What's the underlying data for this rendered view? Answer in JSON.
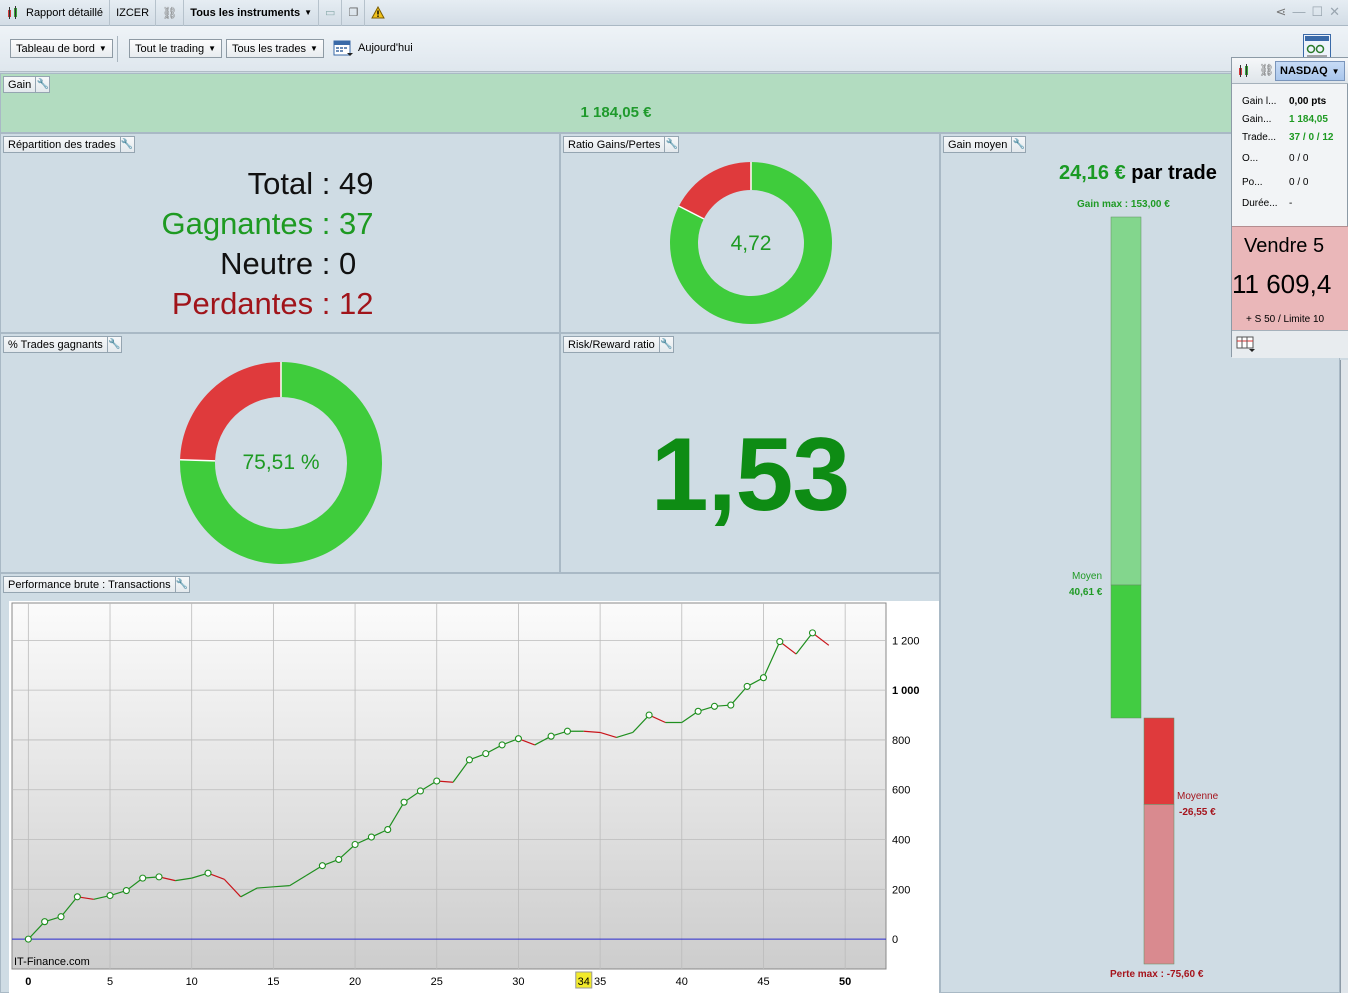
{
  "titlebar": {
    "report_label": "Rapport détaillé",
    "account": "IZCER",
    "instruments": "Tous les instruments"
  },
  "toolbar": {
    "dashboard": "Tableau de bord",
    "trading": "Tout le trading",
    "trades": "Tous les trades",
    "period": "Aujourd'hui"
  },
  "gain": {
    "title": "Gain",
    "value": "1 184,05 €"
  },
  "repartition": {
    "title": "Répartition des trades",
    "rows": [
      {
        "label": "Total :",
        "value": "49",
        "color": "#111111"
      },
      {
        "label": "Gagnantes :",
        "value": "37",
        "color": "#1e9a22"
      },
      {
        "label": "Neutre :",
        "value": "0",
        "color": "#111111"
      },
      {
        "label": "Perdantes :",
        "value": "12",
        "color": "#a0141a"
      }
    ]
  },
  "ratio": {
    "title": "Ratio Gains/Pertes",
    "value": "4,72",
    "green_fraction": 0.8252,
    "colors": {
      "green": "#3fcc3c",
      "red": "#df3a3c"
    }
  },
  "pct": {
    "title": "% Trades gagnants",
    "value": "75,51 %",
    "green_fraction": 0.7551
  },
  "risk": {
    "title": "Risk/Reward ratio",
    "value": "1,53"
  },
  "gain_moyen": {
    "title": "Gain moyen",
    "amount": "24,16 €",
    "suffix": "par trade",
    "gain_max": "Gain max : 153,00 €",
    "moyen_label": "Moyen",
    "moyen_value": "40,61 €",
    "moyenne_label": "Moyenne",
    "moyenne_value": "-26,55 €",
    "perte_max": "Perte max : -75,60 €",
    "values": {
      "gain_max": 153.0,
      "gain_avg": 40.61,
      "loss_avg": -26.55,
      "loss_max": -75.6
    }
  },
  "performance": {
    "title": "Performance brute : Transactions",
    "watermark": "IT-Finance.com",
    "highlight_tick": "34"
  },
  "chart_data": {
    "type": "line",
    "title": "Performance brute : Transactions",
    "x": [
      0,
      1,
      2,
      3,
      4,
      5,
      6,
      7,
      8,
      9,
      10,
      11,
      12,
      13,
      14,
      15,
      16,
      17,
      18,
      19,
      20,
      21,
      22,
      23,
      24,
      25,
      26,
      27,
      28,
      29,
      30,
      31,
      32,
      33,
      34,
      35,
      36,
      37,
      38,
      39,
      40,
      41,
      42,
      43,
      44,
      45,
      46,
      47,
      48,
      49
    ],
    "y": [
      0,
      70,
      90,
      170,
      160,
      175,
      195,
      245,
      250,
      235,
      245,
      265,
      240,
      170,
      205,
      210,
      215,
      255,
      295,
      320,
      380,
      410,
      440,
      550,
      595,
      635,
      630,
      720,
      745,
      780,
      805,
      780,
      815,
      835,
      835,
      830,
      810,
      830,
      900,
      870,
      870,
      915,
      935,
      940,
      1015,
      1050,
      1195,
      1145,
      1230,
      1180
    ],
    "markers": [
      1,
      1,
      1,
      1,
      0,
      1,
      1,
      1,
      1,
      0,
      0,
      1,
      0,
      0,
      0,
      0,
      0,
      0,
      1,
      1,
      1,
      1,
      1,
      1,
      1,
      1,
      0,
      1,
      1,
      1,
      1,
      0,
      1,
      1,
      0,
      0,
      0,
      0,
      1,
      0,
      0,
      1,
      1,
      1,
      1,
      1,
      1,
      0,
      1,
      0
    ],
    "xticks": [
      0,
      5,
      10,
      15,
      20,
      25,
      30,
      35,
      40,
      45,
      50
    ],
    "yticks": [
      0,
      200,
      400,
      600,
      800,
      1000,
      1200
    ],
    "ytick_labels": [
      "0",
      "200",
      "400",
      "600",
      "800",
      "1 000",
      "1 200"
    ],
    "xlim": [
      -1,
      52.5
    ],
    "ylim": [
      -120,
      1350
    ],
    "colors": {
      "up": "#1f8f1f",
      "down": "#c9141a",
      "zero": "#2a2ad0"
    }
  },
  "widget": {
    "instrument": "NASDAQ",
    "rows": [
      {
        "k": "Gain l...",
        "v": "0,00 pts",
        "vcolor": "#000000"
      },
      {
        "k": "Gain...",
        "v": "1 184,05",
        "vcolor": "#1e9a22"
      },
      {
        "k": "Trade...",
        "v": "37 / 0 / 12",
        "vcolor": "#1e9a22"
      },
      {
        "k": "O...",
        "v": "0       / 0",
        "vcolor": "#000000"
      },
      {
        "k": "Po...",
        "v": "0       / 0",
        "vcolor": "#000000"
      },
      {
        "k": "Durée...",
        "v": "-",
        "vcolor": "#000000"
      }
    ],
    "sell_title": "Vendre 5",
    "sell_price": "11 609,4",
    "sell_note": "+ S 50 / Limite 10"
  }
}
